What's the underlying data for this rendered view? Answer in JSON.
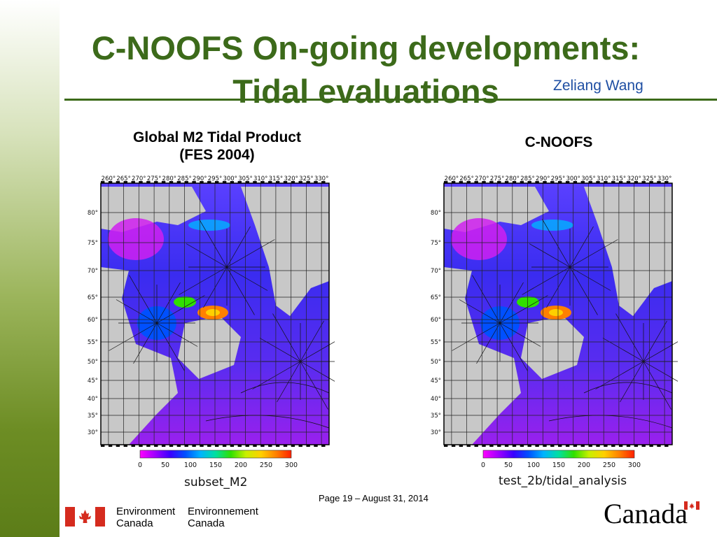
{
  "slide": {
    "title_line1": "C-NOOFS On-going developments:",
    "title_line2": "Tidal evaluations",
    "author": "Zeliang Wang",
    "footer": "Page 19 – August 31, 2014",
    "colors": {
      "title": "#3c6a1a",
      "author": "#1f4fa3",
      "sidebar": "#6d8d24"
    }
  },
  "left_panel": {
    "title_line1": "Global M2 Tidal Product",
    "title_line2": "(FES 2004)",
    "caption": "subset_M2"
  },
  "right_panel": {
    "title": "C-NOOFS",
    "caption": "test_2b/tidal_analysis"
  },
  "map_axes": {
    "lon_ticks": [
      "260°",
      "265°",
      "270°",
      "275°",
      "280°",
      "285°",
      "290°",
      "295°",
      "300°",
      "305°",
      "310°",
      "315°",
      "320°",
      "325°",
      "330°"
    ],
    "lat_ticks": [
      "80°",
      "75°",
      "70°",
      "65°",
      "60°",
      "55°",
      "50°",
      "45°",
      "40°",
      "35°",
      "30°"
    ]
  },
  "colorbar": {
    "ticks": [
      "0",
      "50",
      "100",
      "150",
      "200",
      "250",
      "300"
    ],
    "colors": [
      "#ff00ff",
      "#a000ff",
      "#3a00ff",
      "#0050ff",
      "#00b4ff",
      "#00e0a0",
      "#30e000",
      "#c8f000",
      "#ffd000",
      "#ff8000",
      "#ff2000"
    ]
  },
  "logos": {
    "en_line1": "Environment",
    "en_line2": "Canada",
    "fr_line1": "Environnement",
    "fr_line2": "Canada",
    "wordmark": "Canada",
    "flag_icon": "canadian-flag-icon"
  }
}
